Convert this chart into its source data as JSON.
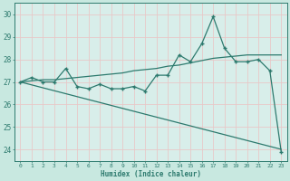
{
  "x": [
    0,
    1,
    2,
    3,
    4,
    5,
    6,
    7,
    8,
    9,
    10,
    11,
    12,
    13,
    14,
    15,
    16,
    17,
    18,
    19,
    20,
    21,
    22,
    23
  ],
  "y_curve": [
    27.0,
    27.2,
    27.0,
    27.0,
    27.6,
    26.8,
    26.7,
    26.9,
    26.7,
    26.7,
    26.8,
    26.6,
    27.3,
    27.3,
    28.2,
    27.9,
    28.7,
    29.9,
    28.5,
    27.9,
    27.9,
    28.0,
    27.5,
    23.9
  ],
  "y_trend1": [
    27.0,
    27.05,
    27.1,
    27.1,
    27.15,
    27.2,
    27.25,
    27.3,
    27.35,
    27.4,
    27.5,
    27.55,
    27.6,
    27.7,
    27.75,
    27.85,
    27.95,
    28.05,
    28.1,
    28.15,
    28.2,
    28.2,
    28.2,
    28.2
  ],
  "y_trend2": [
    27.0,
    26.87,
    26.74,
    26.61,
    26.48,
    26.35,
    26.22,
    26.09,
    25.96,
    25.83,
    25.7,
    25.57,
    25.44,
    25.31,
    25.18,
    25.05,
    24.92,
    24.79,
    24.66,
    24.53,
    24.4,
    24.27,
    24.14,
    24.01
  ],
  "line_color": "#2d7a6e",
  "bg_color": "#c8e8e0",
  "plot_bg_color": "#d8eeea",
  "grid_color": "#e8c8c8",
  "xlabel": "Humidex (Indice chaleur)",
  "ylim": [
    23.5,
    30.5
  ],
  "xlim": [
    -0.5,
    23.5
  ],
  "yticks": [
    24,
    25,
    26,
    27,
    28,
    29,
    30
  ],
  "xticks": [
    0,
    1,
    2,
    3,
    4,
    5,
    6,
    7,
    8,
    9,
    10,
    11,
    12,
    13,
    14,
    15,
    16,
    17,
    18,
    19,
    20,
    21,
    22,
    23
  ]
}
